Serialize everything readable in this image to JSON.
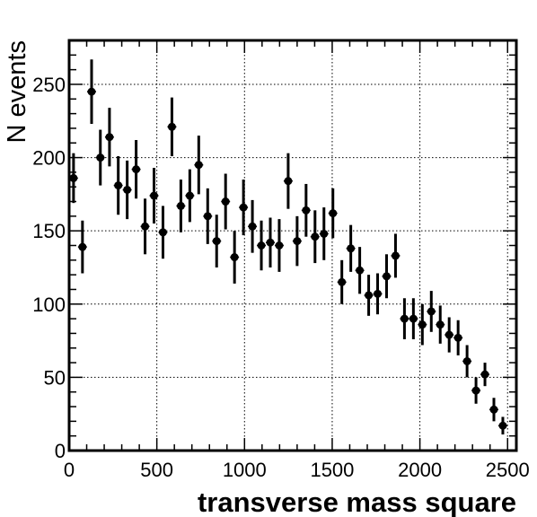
{
  "chart_data": {
    "type": "scatter",
    "title": "",
    "xlabel": "transverse mass square",
    "ylabel": "N events",
    "xlim": [
      0,
      2550
    ],
    "ylim": [
      0,
      280
    ],
    "grid": true,
    "x_ticks": [
      0,
      500,
      1000,
      1500,
      2000,
      2500
    ],
    "y_ticks": [
      0,
      50,
      100,
      150,
      200,
      250
    ],
    "x_tick_labels": [
      "0",
      "500",
      "1000",
      "1500",
      "2000",
      "2500"
    ],
    "y_tick_labels": [
      "0",
      "50",
      "100",
      "150",
      "200",
      "250"
    ],
    "bin_width": 51,
    "series": [
      {
        "x": [
          25,
          76,
          128,
          178,
          230,
          280,
          331,
          382,
          433,
          484,
          535,
          586,
          637,
          688,
          739,
          790,
          841,
          892,
          943,
          994,
          1045,
          1096,
          1147,
          1198,
          1249,
          1300,
          1351,
          1402,
          1453,
          1504,
          1555,
          1606,
          1657,
          1708,
          1759,
          1810,
          1861,
          1912,
          1963,
          2014,
          2065,
          2116,
          2167,
          2218,
          2269,
          2320,
          2371,
          2422,
          2473
        ],
        "y": [
          186,
          139,
          245,
          200,
          214,
          181,
          178,
          192,
          153,
          174,
          149,
          221,
          167,
          174,
          195,
          160,
          143,
          170,
          132,
          166,
          153,
          140,
          142,
          140,
          184,
          143,
          164,
          146,
          148,
          162,
          115,
          138,
          123,
          106,
          107,
          119,
          133,
          90,
          90,
          86,
          95,
          86,
          79,
          77,
          61,
          41,
          52,
          28,
          17
        ],
        "yerr": [
          17,
          18,
          22,
          19,
          20,
          20,
          20,
          20,
          19,
          19,
          18,
          20,
          18,
          18,
          20,
          19,
          18,
          19,
          18,
          19,
          18,
          17,
          17,
          18,
          19,
          17,
          18,
          18,
          18,
          17,
          15,
          16,
          16,
          14,
          14,
          15,
          15,
          14,
          14,
          14,
          14,
          13,
          12,
          12,
          11,
          9,
          8,
          8,
          6
        ]
      }
    ]
  }
}
